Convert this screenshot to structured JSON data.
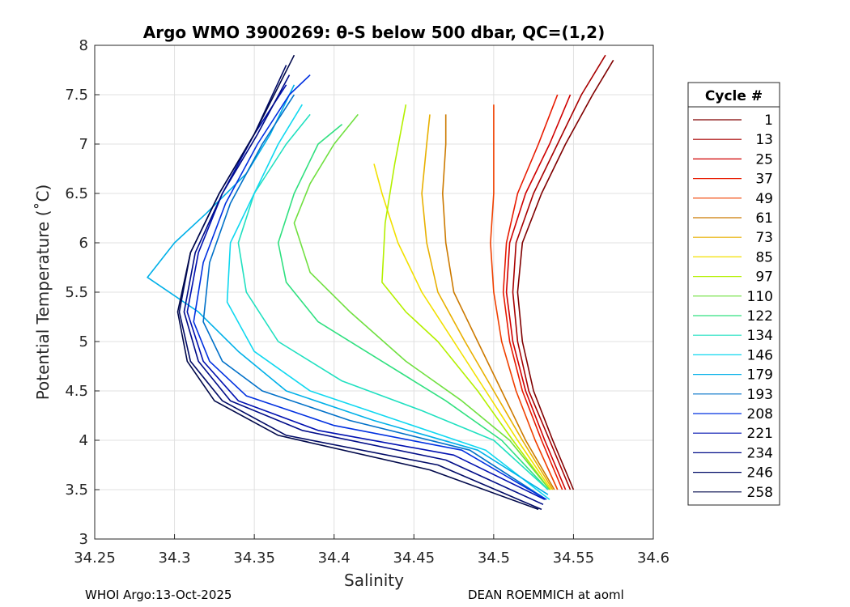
{
  "chart_data": {
    "type": "line",
    "title": "Argo WMO 3900269: θ-S below 500 dbar,  QC=(1,2)",
    "xlabel": "Salinity",
    "ylabel": "Potential Temperature (˚C)",
    "xlim": [
      34.25,
      34.6
    ],
    "ylim": [
      3,
      8
    ],
    "x_ticks": [
      "34.25",
      "34.3",
      "34.35",
      "34.4",
      "34.45",
      "34.5",
      "34.55",
      "34.6"
    ],
    "y_ticks": [
      "3",
      "3.5",
      "4",
      "4.5",
      "5",
      "5.5",
      "6",
      "6.5",
      "7",
      "7.5",
      "8"
    ],
    "grid": true,
    "legend": {
      "title": "Cycle #",
      "placement": "right",
      "entries": [
        {
          "label": "1",
          "color": "#800000"
        },
        {
          "label": "13",
          "color": "#a80000"
        },
        {
          "label": "25",
          "color": "#d00000"
        },
        {
          "label": "37",
          "color": "#e81a00"
        },
        {
          "label": "49",
          "color": "#f04000"
        },
        {
          "label": "61",
          "color": "#cc7a00"
        },
        {
          "label": "73",
          "color": "#e8b000"
        },
        {
          "label": "85",
          "color": "#f2e000"
        },
        {
          "label": "97",
          "color": "#b4f000"
        },
        {
          "label": "110",
          "color": "#70e040"
        },
        {
          "label": "122",
          "color": "#30e080"
        },
        {
          "label": "134",
          "color": "#20e0c0"
        },
        {
          "label": "146",
          "color": "#10d8f0"
        },
        {
          "label": "179",
          "color": "#00b0e8"
        },
        {
          "label": "193",
          "color": "#0070c8"
        },
        {
          "label": "208",
          "color": "#0030e0"
        },
        {
          "label": "221",
          "color": "#0010b0"
        },
        {
          "label": "234",
          "color": "#000c88"
        },
        {
          "label": "246",
          "color": "#000a66"
        },
        {
          "label": "258",
          "color": "#00084a"
        }
      ]
    },
    "series": [
      {
        "name": "1",
        "color": "#800000",
        "x": [
          34.55,
          34.537,
          34.525,
          34.518,
          34.515,
          34.518,
          34.53,
          34.545,
          34.562,
          34.575
        ],
        "y": [
          3.5,
          4.0,
          4.5,
          5.0,
          5.5,
          6.0,
          6.5,
          7.0,
          7.5,
          7.85
        ]
      },
      {
        "name": "13",
        "color": "#a80000",
        "x": [
          34.548,
          34.535,
          34.522,
          34.515,
          34.512,
          34.514,
          34.525,
          34.54,
          34.555,
          34.57
        ],
        "y": [
          3.5,
          4.0,
          4.5,
          5.0,
          5.5,
          6.0,
          6.5,
          7.0,
          7.5,
          7.9
        ]
      },
      {
        "name": "25",
        "color": "#d00000",
        "x": [
          34.545,
          34.532,
          34.52,
          34.512,
          34.508,
          34.51,
          34.52,
          34.535,
          34.548
        ],
        "y": [
          3.5,
          4.0,
          4.5,
          5.0,
          5.5,
          6.0,
          6.5,
          7.0,
          7.5
        ]
      },
      {
        "name": "37",
        "color": "#e81a00",
        "x": [
          34.543,
          34.53,
          34.518,
          34.51,
          34.506,
          34.508,
          34.515,
          34.528,
          34.54
        ],
        "y": [
          3.5,
          4.0,
          4.5,
          5.0,
          5.5,
          6.0,
          6.5,
          7.0,
          7.5
        ]
      },
      {
        "name": "49",
        "color": "#f04000",
        "x": [
          34.54,
          34.526,
          34.514,
          34.505,
          34.5,
          34.498,
          34.5,
          34.5,
          34.5
        ],
        "y": [
          3.5,
          4.0,
          4.5,
          5.0,
          5.5,
          6.0,
          6.5,
          7.0,
          7.4
        ]
      },
      {
        "name": "61",
        "color": "#cc7a00",
        "x": [
          34.538,
          34.52,
          34.505,
          34.49,
          34.475,
          34.47,
          34.468,
          34.47,
          34.47
        ],
        "y": [
          3.5,
          4.0,
          4.5,
          5.0,
          5.5,
          6.0,
          6.5,
          7.0,
          7.3
        ]
      },
      {
        "name": "73",
        "color": "#e8b000",
        "x": [
          34.537,
          34.518,
          34.5,
          34.482,
          34.465,
          34.458,
          34.455,
          34.458,
          34.46
        ],
        "y": [
          3.5,
          4.0,
          4.5,
          5.0,
          5.5,
          6.0,
          6.5,
          7.0,
          7.3
        ]
      },
      {
        "name": "85",
        "color": "#f2e000",
        "x": [
          34.536,
          34.515,
          34.495,
          34.475,
          34.455,
          34.44,
          34.43,
          34.425
        ],
        "y": [
          3.5,
          4.0,
          4.5,
          5.0,
          5.5,
          6.0,
          6.5,
          6.8
        ]
      },
      {
        "name": "97",
        "color": "#b4f000",
        "x": [
          34.535,
          34.512,
          34.49,
          34.465,
          34.445,
          34.43,
          34.432,
          34.438,
          34.445
        ],
        "y": [
          3.5,
          4.0,
          4.5,
          5.0,
          5.3,
          5.6,
          6.2,
          6.8,
          7.4
        ]
      },
      {
        "name": "110",
        "color": "#70e040",
        "x": [
          34.535,
          34.51,
          34.48,
          34.445,
          34.41,
          34.385,
          34.375,
          34.385,
          34.4,
          34.415
        ],
        "y": [
          3.5,
          4.0,
          4.4,
          4.8,
          5.3,
          5.7,
          6.2,
          6.6,
          7.0,
          7.3
        ]
      },
      {
        "name": "122",
        "color": "#30e080",
        "x": [
          34.534,
          34.505,
          34.47,
          34.43,
          34.39,
          34.37,
          34.365,
          34.375,
          34.39,
          34.405
        ],
        "y": [
          3.5,
          4.0,
          4.4,
          4.8,
          5.2,
          5.6,
          6.0,
          6.5,
          7.0,
          7.2
        ]
      },
      {
        "name": "134",
        "color": "#20e0c0",
        "x": [
          34.534,
          34.5,
          34.455,
          34.405,
          34.365,
          34.345,
          34.34,
          34.35,
          34.37,
          34.385
        ],
        "y": [
          3.5,
          4.0,
          4.3,
          4.6,
          5.0,
          5.5,
          6.0,
          6.5,
          7.0,
          7.3
        ]
      },
      {
        "name": "146",
        "color": "#10d8f0",
        "x": [
          34.535,
          34.495,
          34.44,
          34.385,
          34.35,
          34.333,
          34.335,
          34.35,
          34.365,
          34.38
        ],
        "y": [
          3.4,
          3.9,
          4.2,
          4.5,
          4.9,
          5.4,
          6.0,
          6.5,
          7.0,
          7.4
        ]
      },
      {
        "name": "179",
        "color": "#00b0e8",
        "x": [
          34.534,
          34.49,
          34.425,
          34.37,
          34.34,
          34.315,
          34.283,
          34.3,
          34.32,
          34.345,
          34.36,
          34.375
        ],
        "y": [
          3.45,
          3.9,
          4.2,
          4.5,
          4.9,
          5.3,
          5.65,
          6.0,
          6.3,
          6.7,
          7.1,
          7.6
        ]
      },
      {
        "name": "193",
        "color": "#0070c8",
        "x": [
          34.533,
          34.485,
          34.41,
          34.355,
          34.33,
          34.318,
          34.322,
          34.335,
          34.355,
          34.375
        ],
        "y": [
          3.4,
          3.9,
          4.2,
          4.5,
          4.8,
          5.2,
          5.8,
          6.4,
          7.0,
          7.5
        ]
      },
      {
        "name": "208",
        "color": "#0030e0",
        "x": [
          34.533,
          34.48,
          34.4,
          34.345,
          34.322,
          34.312,
          34.318,
          34.332,
          34.352,
          34.372,
          34.385
        ],
        "y": [
          3.4,
          3.9,
          4.15,
          4.45,
          4.8,
          5.2,
          5.8,
          6.4,
          7.0,
          7.5,
          7.7
        ]
      },
      {
        "name": "221",
        "color": "#0010b0",
        "x": [
          34.532,
          34.475,
          34.39,
          34.34,
          34.318,
          34.308,
          34.315,
          34.33,
          34.35,
          34.37
        ],
        "y": [
          3.4,
          3.85,
          4.1,
          4.4,
          4.8,
          5.3,
          5.9,
          6.5,
          7.1,
          7.6
        ]
      },
      {
        "name": "234",
        "color": "#000c88",
        "x": [
          34.531,
          34.47,
          34.38,
          34.335,
          34.315,
          34.306,
          34.313,
          34.33,
          34.352,
          34.372
        ],
        "y": [
          3.35,
          3.8,
          4.1,
          4.4,
          4.8,
          5.3,
          5.9,
          6.5,
          7.1,
          7.7
        ]
      },
      {
        "name": "246",
        "color": "#000a66",
        "x": [
          34.53,
          34.465,
          34.37,
          34.33,
          34.31,
          34.303,
          34.31,
          34.328,
          34.35,
          34.37
        ],
        "y": [
          3.3,
          3.75,
          4.05,
          4.4,
          4.8,
          5.3,
          5.9,
          6.5,
          7.1,
          7.8
        ]
      },
      {
        "name": "258",
        "color": "#00084a",
        "x": [
          34.528,
          34.46,
          34.365,
          34.325,
          34.308,
          34.302,
          34.31,
          34.328,
          34.35,
          34.375
        ],
        "y": [
          3.3,
          3.7,
          4.05,
          4.4,
          4.8,
          5.3,
          5.9,
          6.5,
          7.1,
          7.9
        ]
      }
    ]
  },
  "footer": {
    "left": "WHOI Argo:13-Oct-2025",
    "right": "DEAN ROEMMICH at aoml"
  }
}
